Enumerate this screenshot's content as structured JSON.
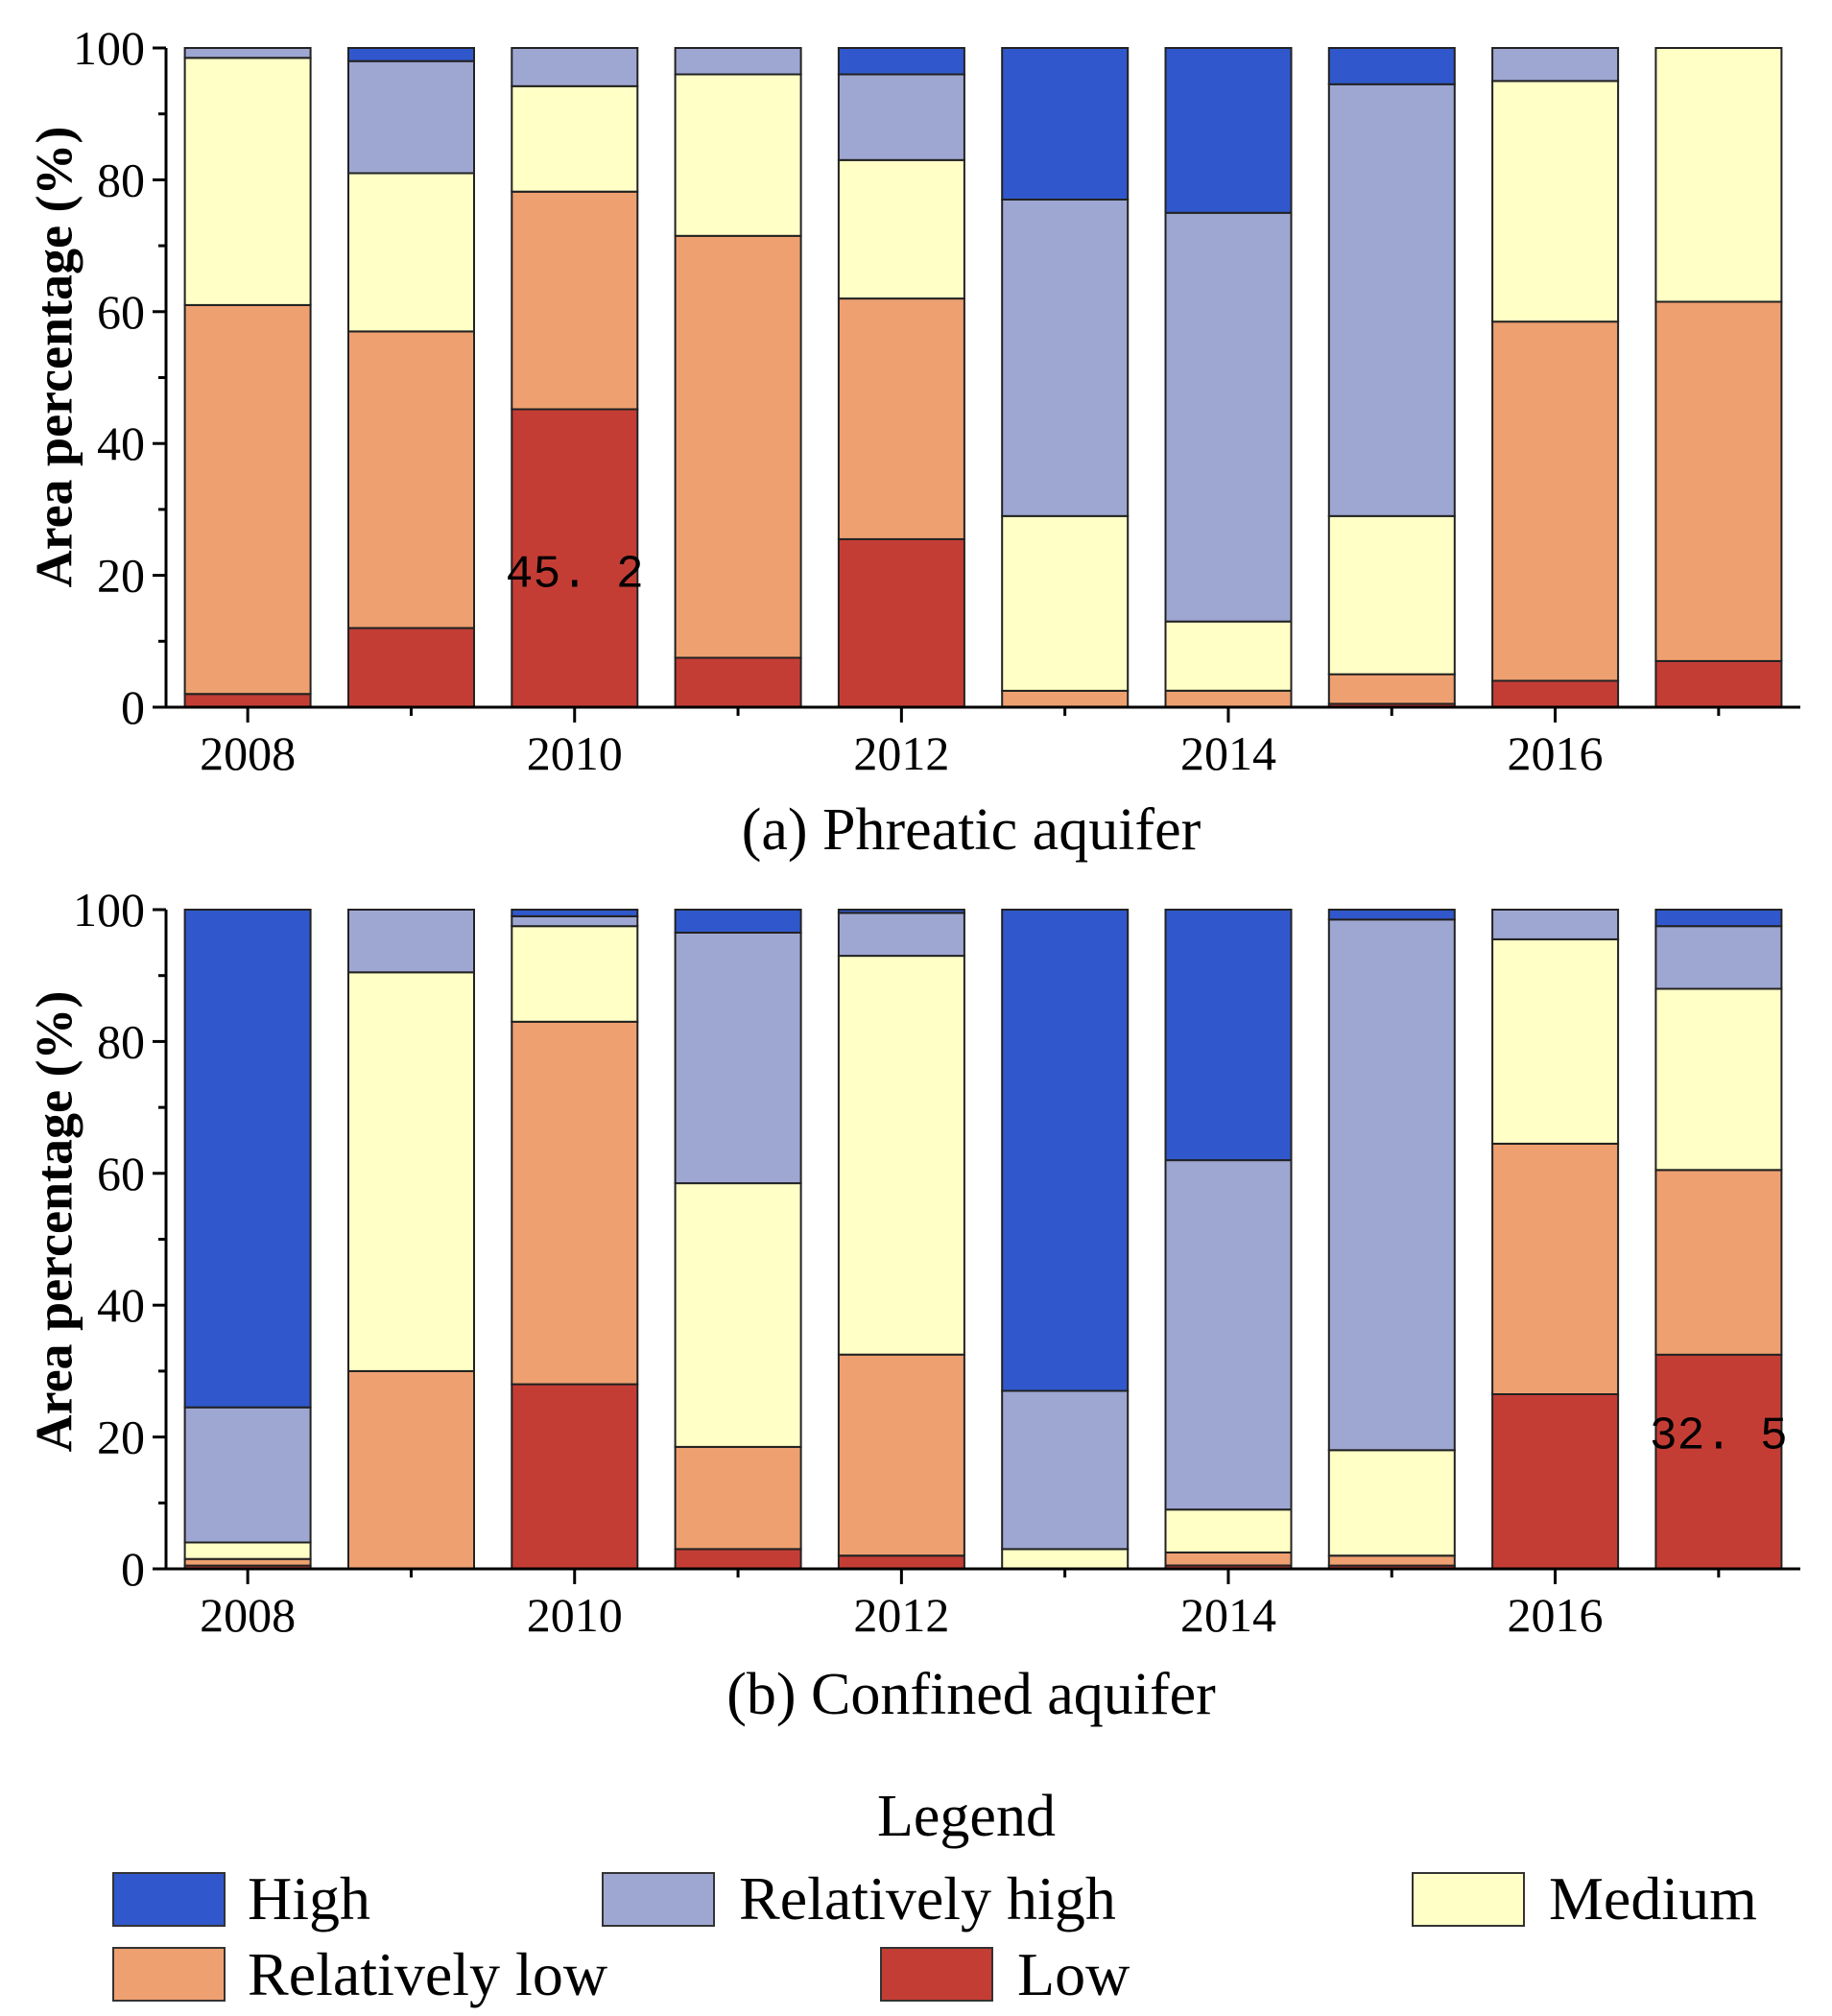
{
  "chart_data": [
    {
      "type": "bar",
      "stacked": true,
      "title": "",
      "caption": "(a) Phreatic aquifer",
      "xlabel": "",
      "ylabel": "Area percentage (%)",
      "ylim": [
        0,
        100
      ],
      "yticks": [
        "0",
        "20",
        "40",
        "60",
        "80",
        "100"
      ],
      "categories": [
        "2008",
        "2009",
        "2010",
        "2011",
        "2012",
        "2013",
        "2014",
        "2015",
        "2016",
        "2017"
      ],
      "xtick_labels": [
        "2008",
        "2010",
        "2012",
        "2014",
        "2016"
      ],
      "series": [
        {
          "name": "Low",
          "values": [
            2,
            12,
            45.2,
            7.5,
            25.5,
            0,
            0,
            0.5,
            4,
            7
          ]
        },
        {
          "name": "Relatively low",
          "values": [
            59,
            45,
            33,
            64,
            36.5,
            2.5,
            2.5,
            4.5,
            54.5,
            54.5
          ]
        },
        {
          "name": "Medium",
          "values": [
            37.5,
            24,
            16,
            24.5,
            21,
            26.5,
            10.5,
            24,
            36.5,
            38.5
          ]
        },
        {
          "name": "Relatively high",
          "values": [
            1.5,
            17,
            6,
            4,
            13,
            48,
            62,
            65.5,
            5,
            0
          ]
        },
        {
          "name": "High",
          "values": [
            0,
            2,
            0,
            0,
            4,
            23,
            25,
            5.5,
            0,
            0
          ]
        }
      ],
      "annotations": [
        {
          "category": "2010",
          "text": "45. 2"
        }
      ]
    },
    {
      "type": "bar",
      "stacked": true,
      "title": "",
      "caption": "(b) Confined aquifer",
      "xlabel": "",
      "ylabel": "Area percentage (%)",
      "ylim": [
        0,
        100
      ],
      "yticks": [
        "0",
        "20",
        "40",
        "60",
        "80",
        "100"
      ],
      "categories": [
        "2008",
        "2009",
        "2010",
        "2011",
        "2012",
        "2013",
        "2014",
        "2015",
        "2016",
        "2017"
      ],
      "xtick_labels": [
        "2008",
        "2010",
        "2012",
        "2014",
        "2016"
      ],
      "series": [
        {
          "name": "Low",
          "values": [
            0.5,
            0,
            28,
            3,
            2,
            0,
            0.5,
            0.5,
            26.5,
            32.5
          ]
        },
        {
          "name": "Relatively low",
          "values": [
            1,
            30,
            55,
            15.5,
            30.5,
            0,
            2,
            1.5,
            38,
            28
          ]
        },
        {
          "name": "Medium",
          "values": [
            2.5,
            60.5,
            14.5,
            40,
            60.5,
            3,
            6.5,
            16,
            31,
            27.5
          ]
        },
        {
          "name": "Relatively high",
          "values": [
            20.5,
            9.5,
            1.5,
            38,
            6.5,
            24,
            53,
            80.5,
            4.5,
            9.5
          ]
        },
        {
          "name": "High",
          "values": [
            75.5,
            0,
            1,
            3.5,
            0.5,
            73,
            38,
            1.5,
            0,
            2.5
          ]
        }
      ],
      "annotations": [
        {
          "category": "2017",
          "text": "32. 5"
        }
      ]
    }
  ],
  "legend": {
    "title": "Legend",
    "items": [
      {
        "name": "High",
        "color": "#3058cc"
      },
      {
        "name": "Relatively high",
        "color": "#9ea7d2"
      },
      {
        "name": "Medium",
        "color": "#ffffc6"
      },
      {
        "name": "Relatively low",
        "color": "#eea070"
      },
      {
        "name": "Low",
        "color": "#c43d35"
      }
    ]
  }
}
